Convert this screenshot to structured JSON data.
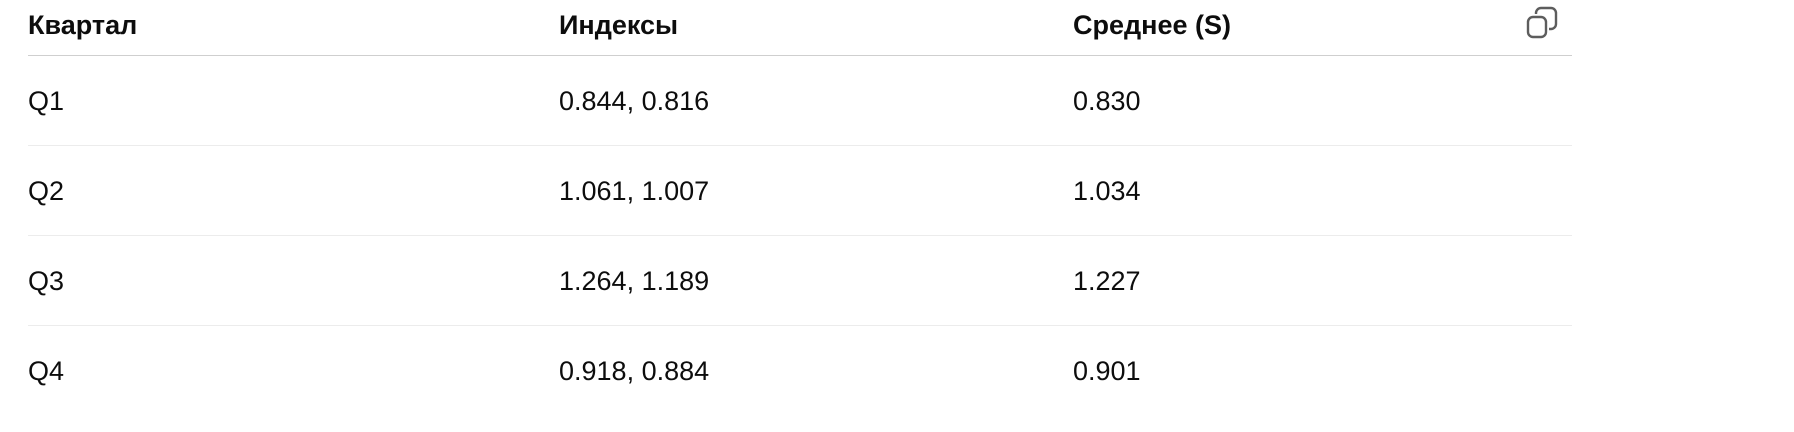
{
  "table": {
    "headers": [
      "Квартал",
      "Индексы",
      "Среднее (S)"
    ],
    "rows": [
      [
        "Q1",
        "0.844, 0.816",
        "0.830"
      ],
      [
        "Q2",
        "1.061, 1.007",
        "1.034"
      ],
      [
        "Q3",
        "1.264, 1.189",
        "1.227"
      ],
      [
        "Q4",
        "0.918, 0.884",
        "0.901"
      ]
    ],
    "copy_icon": "copy-icon"
  }
}
